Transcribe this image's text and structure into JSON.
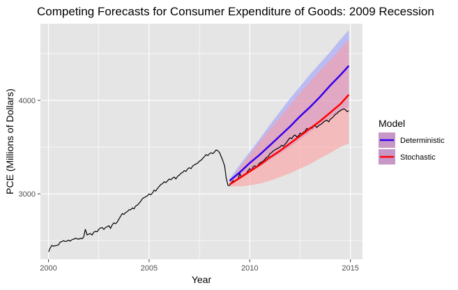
{
  "chart_data": {
    "type": "line",
    "title": "Competing Forecasts for Consumer Expenditure of Goods: 2009 Recession",
    "xlabel": "Year",
    "ylabel": "PCE (Millions of Dollars)",
    "xlim": [
      1999.6,
      2015.6
    ],
    "ylim": [
      2300,
      4820
    ],
    "x_ticks": [
      2000,
      2005,
      2010,
      2015
    ],
    "x_tick_labels": [
      "2000",
      "2005",
      "2010",
      "2015"
    ],
    "y_ticks": [
      3000,
      4000
    ],
    "y_tick_labels": [
      "3000",
      "4000"
    ],
    "grid": true,
    "legend": {
      "title": "Model",
      "position": "right",
      "entries": [
        {
          "label": "Deterministic",
          "color": "#3300ee"
        },
        {
          "label": "Stochastic",
          "color": "#ff0000"
        }
      ]
    },
    "colors": {
      "panel": "#e5e5e5",
      "grid": "#ffffff",
      "actual": "#000000",
      "deterministic_line": "#3300ee",
      "deterministic_band": "#9999ff",
      "stochastic_line": "#ff0000",
      "stochastic_band": "#ff9999",
      "legend_key_fill": "#c797c8"
    },
    "series": [
      {
        "type": "line",
        "color": "#000000",
        "x": [
          2000.0,
          2000.08,
          2000.17,
          2000.25,
          2000.33,
          2000.42,
          2000.5,
          2000.58,
          2000.67,
          2000.75,
          2000.83,
          2000.92,
          2001.0,
          2001.08,
          2001.17,
          2001.25,
          2001.33,
          2001.42,
          2001.5,
          2001.58,
          2001.67,
          2001.75,
          2001.83,
          2001.92,
          2002.0,
          2002.08,
          2002.17,
          2002.25,
          2002.33,
          2002.42,
          2002.5,
          2002.58,
          2002.67,
          2002.75,
          2002.83,
          2002.92,
          2003.0,
          2003.08,
          2003.17,
          2003.25,
          2003.33,
          2003.42,
          2003.5,
          2003.58,
          2003.67,
          2003.75,
          2003.83,
          2003.92,
          2004.0,
          2004.08,
          2004.17,
          2004.25,
          2004.33,
          2004.42,
          2004.5,
          2004.58,
          2004.67,
          2004.75,
          2004.83,
          2004.92,
          2005.0,
          2005.08,
          2005.17,
          2005.25,
          2005.33,
          2005.42,
          2005.5,
          2005.58,
          2005.67,
          2005.75,
          2005.83,
          2005.92,
          2006.0,
          2006.08,
          2006.17,
          2006.25,
          2006.33,
          2006.42,
          2006.5,
          2006.58,
          2006.67,
          2006.75,
          2006.83,
          2006.92,
          2007.0,
          2007.08,
          2007.17,
          2007.25,
          2007.33,
          2007.42,
          2007.5,
          2007.58,
          2007.67,
          2007.75,
          2007.83,
          2007.92,
          2008.0,
          2008.08,
          2008.17,
          2008.25,
          2008.33,
          2008.42,
          2008.5,
          2008.58,
          2008.67,
          2008.75,
          2008.83,
          2008.92,
          2009.0,
          2009.08,
          2009.17,
          2009.25,
          2009.33,
          2009.42,
          2009.5,
          2009.58,
          2009.67,
          2009.75,
          2009.83,
          2009.92,
          2010.0,
          2010.08,
          2010.17,
          2010.25,
          2010.33,
          2010.42,
          2010.5,
          2010.58,
          2010.67,
          2010.75,
          2010.83,
          2010.92,
          2011.0,
          2011.08,
          2011.17,
          2011.25,
          2011.33,
          2011.42,
          2011.5,
          2011.58,
          2011.67,
          2011.75,
          2011.83,
          2011.92,
          2012.0,
          2012.08,
          2012.17,
          2012.25,
          2012.33,
          2012.42,
          2012.5,
          2012.58,
          2012.67,
          2012.75,
          2012.83,
          2012.92,
          2013.0,
          2013.08,
          2013.17,
          2013.25,
          2013.33,
          2013.42,
          2013.5,
          2013.58,
          2013.67,
          2013.75,
          2013.83,
          2013.92,
          2014.0,
          2014.08,
          2014.17,
          2014.25,
          2014.33,
          2014.42,
          2014.5,
          2014.58,
          2014.67,
          2014.75,
          2014.83,
          2014.92
        ],
        "y": [
          2380,
          2420,
          2450,
          2440,
          2445,
          2450,
          2455,
          2485,
          2490,
          2500,
          2490,
          2495,
          2505,
          2495,
          2510,
          2515,
          2525,
          2520,
          2515,
          2525,
          2520,
          2540,
          2620,
          2560,
          2570,
          2575,
          2560,
          2590,
          2600,
          2595,
          2620,
          2635,
          2640,
          2620,
          2640,
          2650,
          2660,
          2630,
          2670,
          2690,
          2680,
          2700,
          2730,
          2760,
          2790,
          2780,
          2800,
          2810,
          2830,
          2830,
          2850,
          2840,
          2870,
          2880,
          2900,
          2920,
          2950,
          2960,
          2970,
          2980,
          3000,
          2990,
          3010,
          3040,
          3030,
          3060,
          3080,
          3100,
          3110,
          3130,
          3120,
          3140,
          3160,
          3150,
          3170,
          3180,
          3160,
          3190,
          3200,
          3220,
          3230,
          3250,
          3240,
          3270,
          3280,
          3270,
          3300,
          3310,
          3320,
          3330,
          3350,
          3360,
          3380,
          3400,
          3420,
          3410,
          3430,
          3440,
          3430,
          3450,
          3470,
          3460,
          3440,
          3400,
          3350,
          3300,
          3170,
          3090,
          3090,
          3120,
          3140,
          3130,
          3150,
          3160,
          3220,
          3180,
          3200,
          3210,
          3220,
          3250,
          3270,
          3250,
          3290,
          3300,
          3290,
          3310,
          3330,
          3340,
          3350,
          3370,
          3390,
          3400,
          3430,
          3440,
          3460,
          3470,
          3480,
          3490,
          3500,
          3520,
          3510,
          3530,
          3550,
          3580,
          3600,
          3590,
          3620,
          3630,
          3610,
          3620,
          3650,
          3640,
          3660,
          3670,
          3700,
          3690,
          3710,
          3700,
          3720,
          3730,
          3710,
          3730,
          3740,
          3750,
          3770,
          3780,
          3790,
          3770,
          3800,
          3810,
          3830,
          3850,
          3860,
          3880,
          3890,
          3900,
          3910,
          3900,
          3880,
          3890
        ]
      },
      {
        "name": "Deterministic",
        "type": "line-with-band",
        "color": "#3300ee",
        "band_color": "#9999ff",
        "x": [
          2009.0,
          2009.5,
          2010.0,
          2010.5,
          2011.0,
          2011.5,
          2012.0,
          2012.5,
          2013.0,
          2013.5,
          2014.0,
          2014.5,
          2014.92
        ],
        "y": [
          3140,
          3230,
          3330,
          3420,
          3520,
          3620,
          3720,
          3830,
          3930,
          4040,
          4160,
          4270,
          4370
        ],
        "lower": [
          3120,
          3170,
          3230,
          3290,
          3360,
          3430,
          3500,
          3580,
          3660,
          3740,
          3820,
          3890,
          3930
        ],
        "upper": [
          3160,
          3310,
          3450,
          3590,
          3740,
          3880,
          4020,
          4150,
          4280,
          4400,
          4520,
          4650,
          4750
        ]
      },
      {
        "name": "Stochastic",
        "type": "line-with-band",
        "color": "#ff0000",
        "band_color": "#ff9999",
        "x": [
          2009.0,
          2009.5,
          2010.0,
          2010.5,
          2011.0,
          2011.5,
          2012.0,
          2012.5,
          2013.0,
          2013.5,
          2014.0,
          2014.5,
          2014.92
        ],
        "y": [
          3100,
          3170,
          3240,
          3310,
          3390,
          3460,
          3540,
          3620,
          3700,
          3780,
          3870,
          3960,
          4060
        ],
        "lower": [
          3080,
          3080,
          3090,
          3110,
          3140,
          3180,
          3220,
          3270,
          3320,
          3380,
          3440,
          3500,
          3540
        ],
        "upper": [
          3120,
          3280,
          3420,
          3560,
          3690,
          3820,
          3950,
          4080,
          4200,
          4320,
          4430,
          4550,
          4650
        ]
      }
    ]
  }
}
